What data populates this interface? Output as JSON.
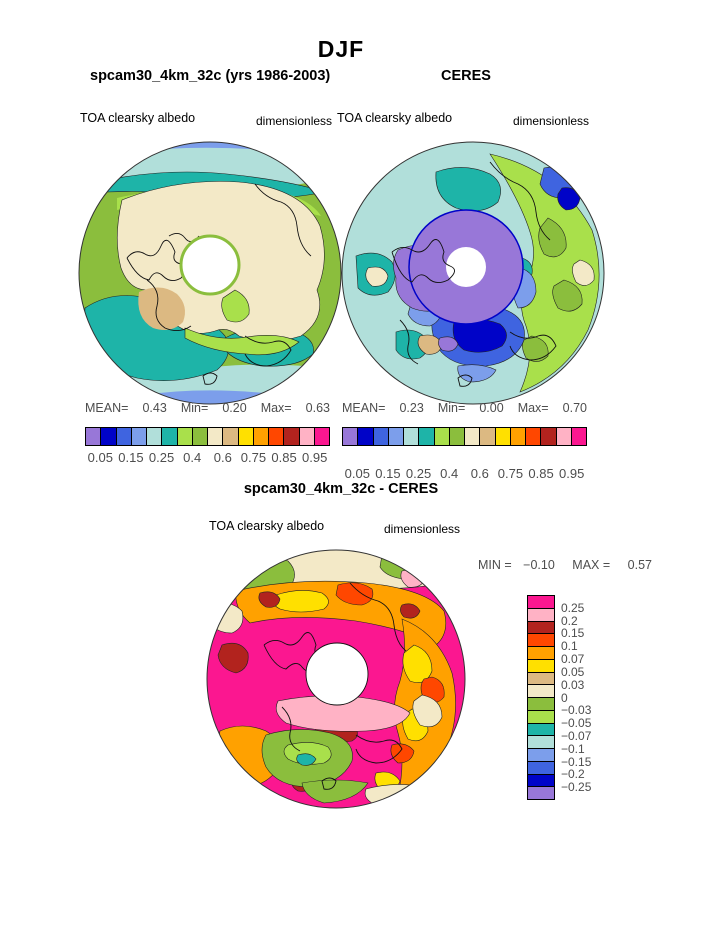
{
  "page": {
    "title": "DJF"
  },
  "panels": {
    "model": {
      "title": "spcam30_4km_32c (yrs 1986-2003)",
      "field": "TOA clearsky albedo",
      "units": "dimensionless",
      "stats": {
        "mean_label": "MEAN=",
        "mean": "0.43",
        "min_label": "Min=",
        "min": "0.20",
        "max_label": "Max=",
        "max": "0.63"
      }
    },
    "obs": {
      "title": "CERES",
      "field": "TOA clearsky albedo",
      "units": "dimensionless",
      "stats": {
        "mean_label": "MEAN=",
        "mean": "0.23",
        "min_label": "Min=",
        "min": "0.00",
        "max_label": "Max=",
        "max": "0.70"
      }
    },
    "diff": {
      "title": "spcam30_4km_32c - CERES",
      "field": "TOA clearsky albedo",
      "units": "dimensionless",
      "min_label": "MIN =",
      "min": "−0.10",
      "max_label": "MAX =",
      "max": "0.57"
    }
  },
  "palette": {
    "colors": [
      "#9877d8",
      "#0003c8",
      "#3f64e0",
      "#7c9eeb",
      "#b1dfda",
      "#1eb4a8",
      "#a9e04b",
      "#8bbe3d",
      "#f3e9c7",
      "#dcb982",
      "#ffe000",
      "#ffa100",
      "#ff4700",
      "#b2231e",
      "#ffb2c5",
      "#fb1790"
    ]
  },
  "colorbar": {
    "tick_labels": [
      "0.05",
      "0.15",
      "0.25",
      "0.4",
      "0.6",
      "0.75",
      "0.85",
      "0.95"
    ],
    "tick_positions": [
      1,
      3,
      5,
      7,
      9,
      11,
      13,
      15
    ]
  },
  "diff_colorbar": {
    "colors": [
      "#fb1790",
      "#ffb2c5",
      "#b2231e",
      "#ff4700",
      "#ffa100",
      "#ffe000",
      "#dcb982",
      "#f3e9c7",
      "#8bbe3d",
      "#a9e04b",
      "#1eb4a8",
      "#b1dfda",
      "#7c9eeb",
      "#3f64e0",
      "#0003c8",
      "#9877d8"
    ],
    "labels": [
      "0.25",
      "0.2",
      "0.15",
      "0.1",
      "0.07",
      "0.05",
      "0.03",
      "0",
      "−0.03",
      "−0.05",
      "−0.07",
      "−0.1",
      "−0.15",
      "−0.2",
      "−0.25"
    ]
  },
  "chart_data": [
    {
      "type": "heatmap",
      "subtype": "polar-stereographic-contour-map",
      "title": "spcam30_4km_32c (yrs 1986-2003)",
      "field": "TOA clearsky albedo",
      "units": "dimensionless",
      "season": "DJF",
      "stats": {
        "mean": 0.43,
        "min": 0.2,
        "max": 0.63
      },
      "levels": [
        0.05,
        0.1,
        0.15,
        0.2,
        0.25,
        0.3,
        0.4,
        0.5,
        0.6,
        0.7,
        0.75,
        0.8,
        0.85,
        0.9,
        0.95
      ],
      "legend_position": "bottom"
    },
    {
      "type": "heatmap",
      "subtype": "polar-stereographic-contour-map",
      "title": "CERES",
      "field": "TOA clearsky albedo",
      "units": "dimensionless",
      "season": "DJF",
      "stats": {
        "mean": 0.23,
        "min": 0.0,
        "max": 0.7
      },
      "levels": [
        0.05,
        0.1,
        0.15,
        0.2,
        0.25,
        0.3,
        0.4,
        0.5,
        0.6,
        0.7,
        0.75,
        0.8,
        0.85,
        0.9,
        0.95
      ],
      "legend_position": "bottom"
    },
    {
      "type": "heatmap",
      "subtype": "polar-stereographic-contour-map-difference",
      "title": "spcam30_4km_32c - CERES",
      "field": "TOA clearsky albedo",
      "units": "dimensionless",
      "season": "DJF",
      "stats": {
        "min": -0.1,
        "max": 0.57
      },
      "levels": [
        -0.25,
        -0.2,
        -0.15,
        -0.1,
        -0.07,
        -0.05,
        -0.03,
        0,
        0.03,
        0.05,
        0.07,
        0.1,
        0.15,
        0.2,
        0.25
      ],
      "legend_position": "right"
    }
  ]
}
